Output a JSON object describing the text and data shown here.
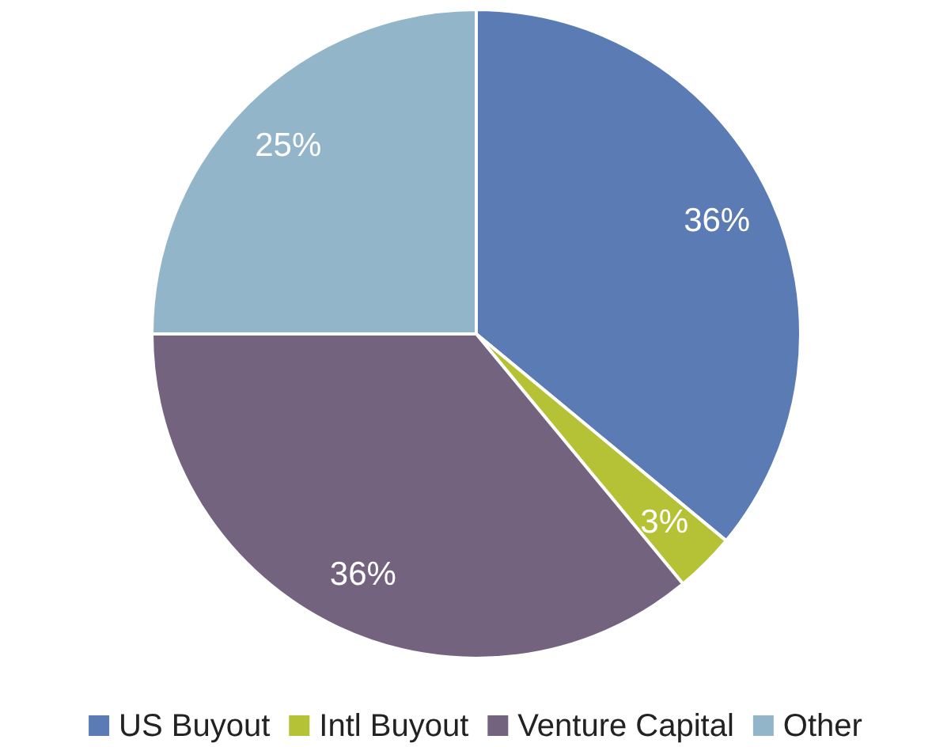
{
  "chart_data": {
    "type": "pie",
    "categories": [
      "US Buyout",
      "Intl Buyout",
      "Venture Capital",
      "Other"
    ],
    "values": [
      36,
      3,
      36,
      25
    ],
    "colors": [
      "#5b7bb5",
      "#b5c236",
      "#73637e",
      "#93b5c9"
    ],
    "value_labels": [
      "36%",
      "3%",
      "36%",
      "25%"
    ],
    "legend": "bottom"
  }
}
